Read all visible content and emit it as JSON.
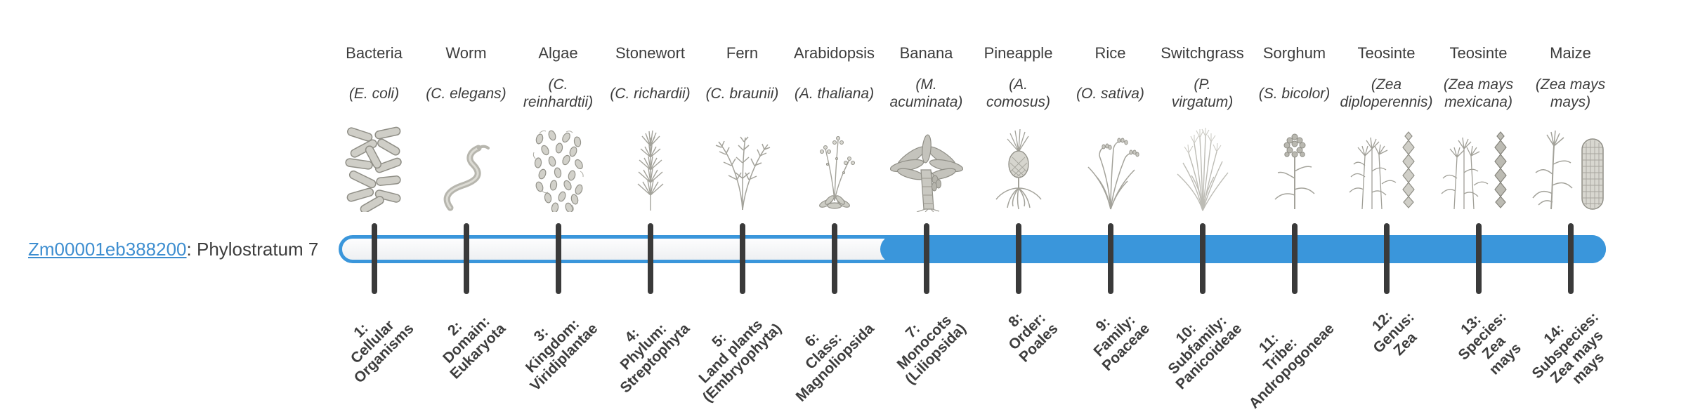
{
  "gene": {
    "id": "Zm00001eb388200",
    "suffix": ": Phylostratum 7",
    "phylostratum": 7
  },
  "colors": {
    "bar_blue": "#3a96db",
    "tick_dark": "#3a3a3a",
    "link_blue": "#3e8ed0",
    "text_dark": "#3d3d3d",
    "illustration_gray": "#a3a29a"
  },
  "chart_data": {
    "type": "bar",
    "title": "Zm00001eb388200: Phylostratum 7",
    "total_strata": 14,
    "filled_from_stratum": 7,
    "filled_to_stratum": 14,
    "categories": [
      "1: Cellular Organisms",
      "2: Domain: Eukaryota",
      "3: Kingdom: Viridiplantae",
      "4: Phylum: Streptophyta",
      "5: Land plants (Embryophyta)",
      "6: Class: Magnoliopsida",
      "7: Monocots (Liliopsida)",
      "8: Order: Poales",
      "9: Family: Poaceae",
      "10: Subfamily: Panicoideae",
      "11: Tribe: Andropogoneae",
      "12: Genus: Zea",
      "13: Species: Zea mays",
      "14: Subspecies: Zea mays mays"
    ],
    "filled": [
      false,
      false,
      false,
      false,
      false,
      false,
      true,
      true,
      true,
      true,
      true,
      true,
      true,
      true
    ]
  },
  "columns": [
    {
      "organism": "Bacteria",
      "species_lines": [
        "(E. coli)"
      ],
      "stratum_lines": [
        "1:",
        "Cellular",
        "Organisms"
      ],
      "icon": "bacteria-icon"
    },
    {
      "organism": "Worm",
      "species_lines": [
        "(C. elegans)"
      ],
      "stratum_lines": [
        "2:",
        "Domain:",
        "Eukaryota"
      ],
      "icon": "worm-icon"
    },
    {
      "organism": "Algae",
      "species_lines": [
        "(C.",
        "reinhardtii)"
      ],
      "stratum_lines": [
        "3:",
        "Kingdom:",
        "Viridiplantae"
      ],
      "icon": "algae-icon"
    },
    {
      "organism": "Stonewort",
      "species_lines": [
        "(C. richardii)"
      ],
      "stratum_lines": [
        "4:",
        "Phylum:",
        "Streptophyta"
      ],
      "icon": "stonewort-icon"
    },
    {
      "organism": "Fern",
      "species_lines": [
        "(C. braunii)"
      ],
      "stratum_lines": [
        "5:",
        "Land plants",
        "(Embryophyta)"
      ],
      "icon": "fern-icon"
    },
    {
      "organism": "Arabidopsis",
      "species_lines": [
        "(A. thaliana)"
      ],
      "stratum_lines": [
        "6:",
        "Class:",
        "Magnoliopsida"
      ],
      "icon": "arabidopsis-icon"
    },
    {
      "organism": "Banana",
      "species_lines": [
        "(M.",
        "acuminata)"
      ],
      "stratum_lines": [
        "7:",
        "Monocots",
        "(Liliopsida)"
      ],
      "icon": "banana-icon"
    },
    {
      "organism": "Pineapple",
      "species_lines": [
        "(A.",
        "comosus)"
      ],
      "stratum_lines": [
        "8:",
        "Order:",
        "Poales"
      ],
      "icon": "pineapple-icon"
    },
    {
      "organism": "Rice",
      "species_lines": [
        "(O. sativa)"
      ],
      "stratum_lines": [
        "9:",
        "Family:",
        "Poaceae"
      ],
      "icon": "rice-icon"
    },
    {
      "organism": "Switchgrass",
      "species_lines": [
        "(P.",
        "virgatum)"
      ],
      "stratum_lines": [
        "10:",
        "Subfamily:",
        "Panicoideae"
      ],
      "icon": "switchgrass-icon"
    },
    {
      "organism": "Sorghum",
      "species_lines": [
        "(S. bicolor)"
      ],
      "stratum_lines": [
        "11:",
        "Tribe:",
        "Andropogoneae"
      ],
      "icon": "sorghum-icon"
    },
    {
      "organism": "Teosinte",
      "species_lines": [
        "(Zea",
        "diploperennis)"
      ],
      "stratum_lines": [
        "12:",
        "Genus:",
        "Zea"
      ],
      "icon": "teosinte-diploperennis-icon"
    },
    {
      "organism": "Teosinte",
      "species_lines": [
        "(Zea mays",
        "mexicana)"
      ],
      "stratum_lines": [
        "13:",
        "Species:",
        "Zea",
        "mays"
      ],
      "icon": "teosinte-mexicana-icon"
    },
    {
      "organism": "Maize",
      "species_lines": [
        "(Zea mays",
        "mays)"
      ],
      "stratum_lines": [
        "14:",
        "Subspecies:",
        "Zea mays",
        "mays"
      ],
      "icon": "maize-icon"
    }
  ]
}
